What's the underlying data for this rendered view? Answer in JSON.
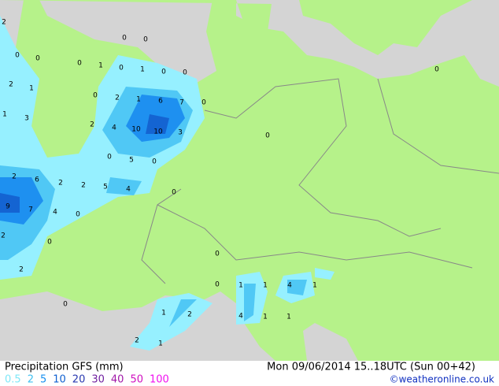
{
  "title": "Precipitation GFS (mm)",
  "run": "Mon 09/06/2014 15..18UTC  (Sun 00+42)",
  "legend": {
    "labels": [
      "0.5",
      "2",
      "5",
      "10",
      "20",
      "30",
      "40",
      "50",
      "100"
    ],
    "colors": [
      "#7fe8f8",
      "#40c0f0",
      "#1890f0",
      "#1060d0",
      "#2838b0",
      "#7020a0",
      "#a018a8",
      "#d010c0",
      "#f010f0"
    ]
  },
  "credit": "©weatheronline.co.uk",
  "map_labels": [
    2,
    0,
    0,
    0,
    0,
    1,
    0,
    0,
    1,
    0,
    0,
    0,
    2,
    1,
    0,
    2,
    1,
    6,
    7,
    0,
    1,
    3,
    2,
    4,
    10,
    10,
    3,
    0,
    0,
    5,
    0,
    2,
    6,
    2,
    2,
    5,
    4,
    0,
    9,
    7,
    4,
    0,
    2,
    0,
    0,
    2,
    0,
    1,
    1,
    4,
    1,
    0,
    1,
    2,
    4,
    1,
    1,
    2,
    1
  ]
}
